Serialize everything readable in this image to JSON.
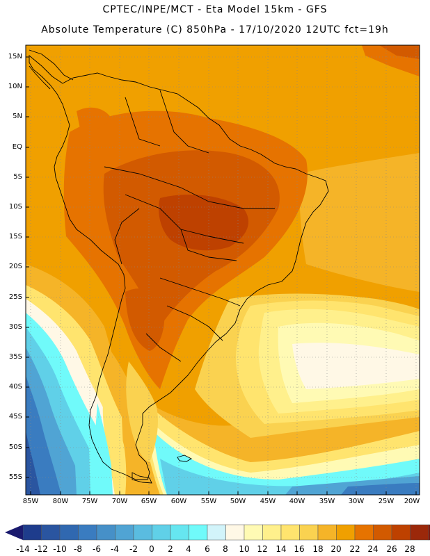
{
  "header": {
    "line1": "CPTEC/INPE/MCT -  Eta Model 15km - GFS",
    "line2": "Absolute Temperature (C) 850hPa - 17/10/2020 12UTC fct=19h"
  },
  "map": {
    "lat_labels": [
      "15N",
      "10N",
      "5N",
      "EQ",
      "5S",
      "10S",
      "15S",
      "20S",
      "25S",
      "30S",
      "35S",
      "40S",
      "45S",
      "50S",
      "55S"
    ],
    "lon_labels": [
      "85W",
      "80W",
      "75W",
      "70W",
      "65W",
      "60W",
      "55W",
      "50W",
      "45W",
      "40W",
      "35W",
      "30W",
      "25W",
      "20W"
    ]
  },
  "colorbar": {
    "labels": [
      "-14",
      "-12",
      "-10",
      "-8",
      "-6",
      "-4",
      "-2",
      "0",
      "2",
      "4",
      "6",
      "8",
      "10",
      "12",
      "14",
      "16",
      "18",
      "20",
      "22",
      "24",
      "26",
      "28"
    ],
    "colors": [
      "#1e3c8c",
      "#2a55a0",
      "#3068b0",
      "#3a7cc0",
      "#4690c8",
      "#50a4d4",
      "#5abce0",
      "#60d0e8",
      "#66e6f0",
      "#70fafa",
      "#d2f4fa",
      "#fff8e6",
      "#fffab4",
      "#fff08c",
      "#ffe46e",
      "#fad250",
      "#f5b428",
      "#f0a000",
      "#e67300",
      "#d25a00",
      "#be4100",
      "#9b280a",
      "#7d140a"
    ],
    "arrow_low": "#1a1a6e",
    "arrow_high": "#7a0020"
  },
  "field_colors": {
    "t28": "#9b280a",
    "t26": "#be4100",
    "t24": "#d25a00",
    "t22": "#e67300",
    "t20": "#f0a000",
    "t18": "#f5b428",
    "t16": "#fad250",
    "t14": "#ffe46e",
    "t12": "#fff08c",
    "t10": "#fffab4",
    "t8": "#fff8e6",
    "t4": "#70fafa",
    "t2": "#66e6f0",
    "t0": "#60d0e8",
    "tm2": "#5abce0",
    "tm4": "#50a4d4",
    "tm6": "#4690c8",
    "tm8": "#3a7cc0",
    "tm10": "#3068b0",
    "tm12": "#2a55a0"
  }
}
